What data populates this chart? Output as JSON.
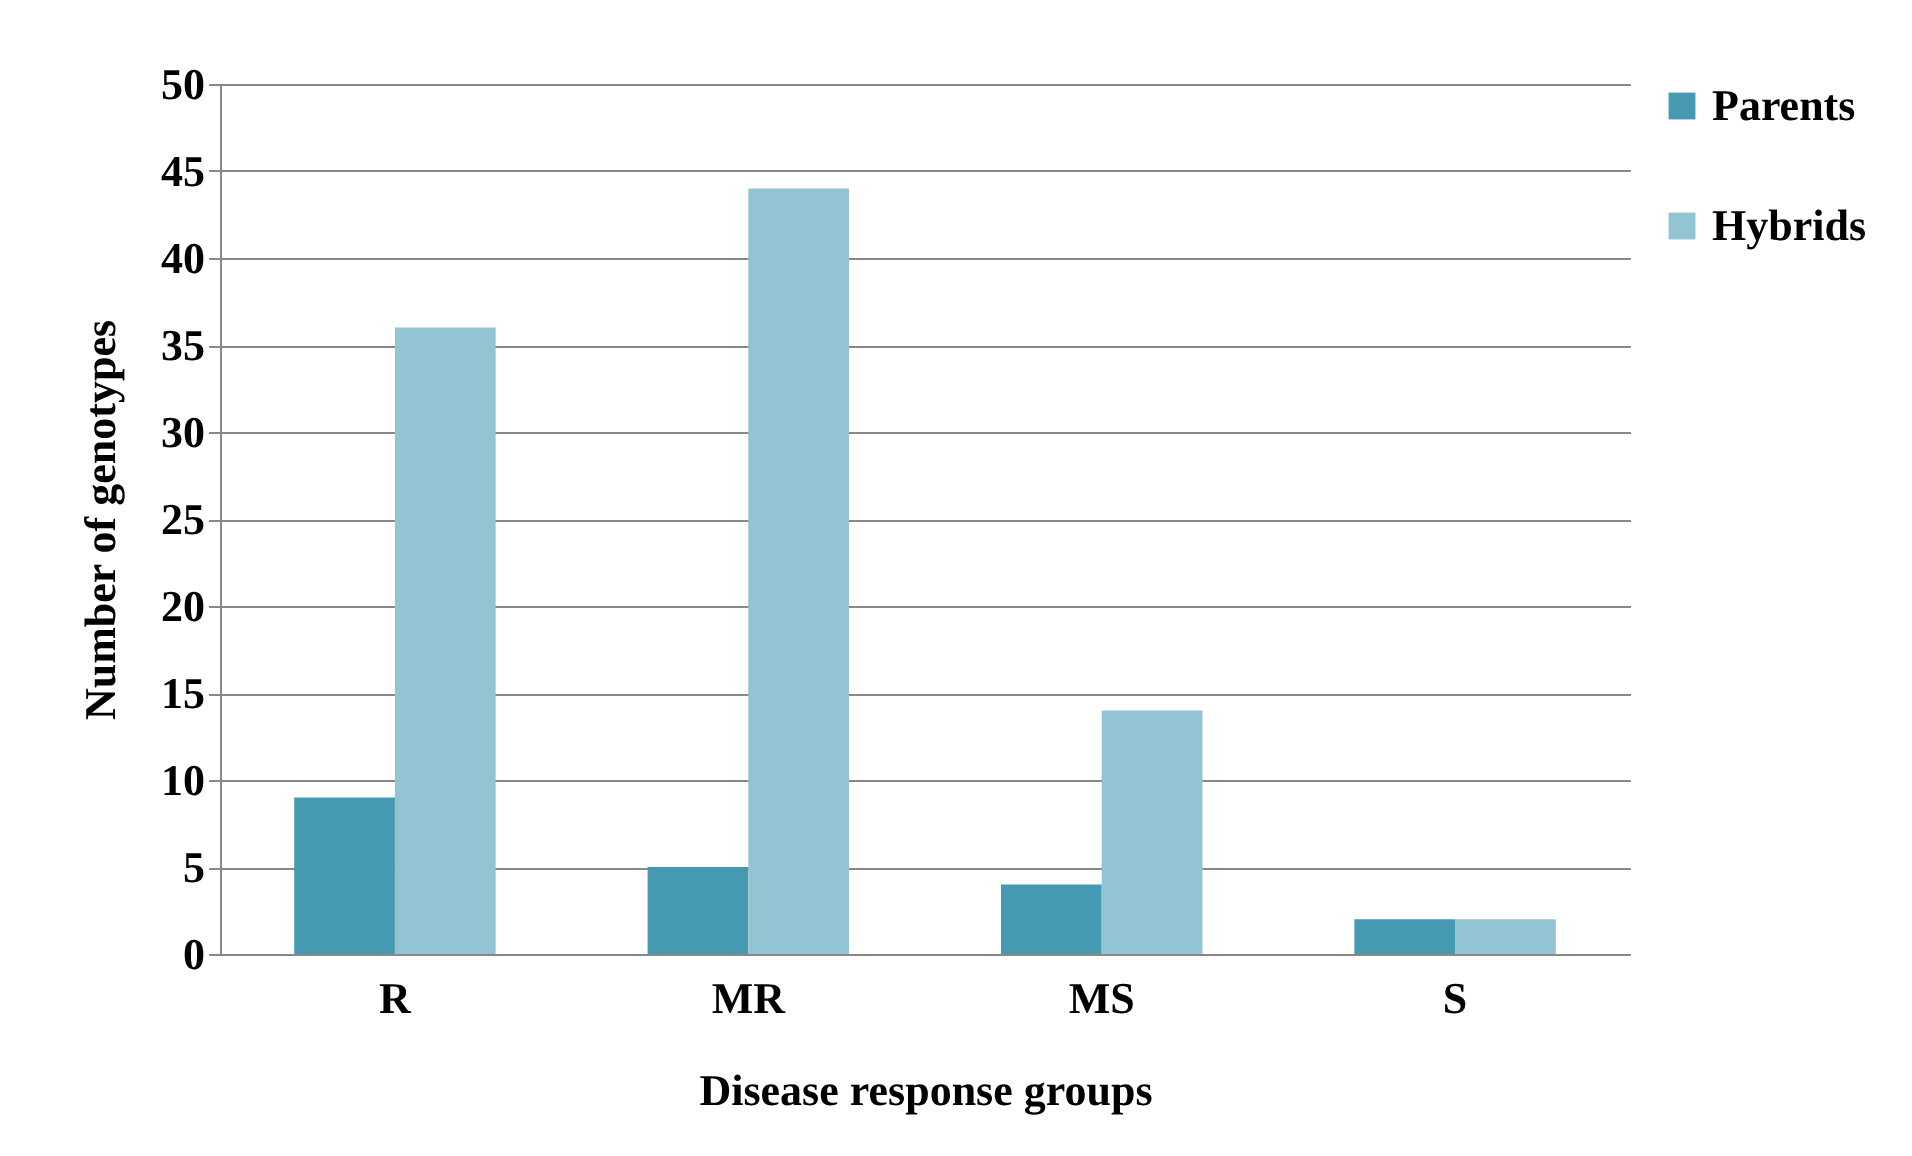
{
  "chart_data": {
    "type": "bar",
    "xlabel": "Disease response groups",
    "ylabel": "Number of genotypes",
    "categories": [
      "R",
      "MR",
      "MS",
      "S"
    ],
    "series": [
      {
        "name": "Parents",
        "color": "#4599b1",
        "values": [
          9,
          5,
          4,
          2
        ]
      },
      {
        "name": "Hybrids",
        "color": "#93c4d4",
        "values": [
          36,
          44,
          14,
          2
        ]
      }
    ],
    "ylim": [
      0,
      50
    ],
    "yticks": [
      0,
      5,
      10,
      15,
      20,
      25,
      30,
      35,
      40,
      45,
      50
    ],
    "grid": "y",
    "legend": "right"
  }
}
